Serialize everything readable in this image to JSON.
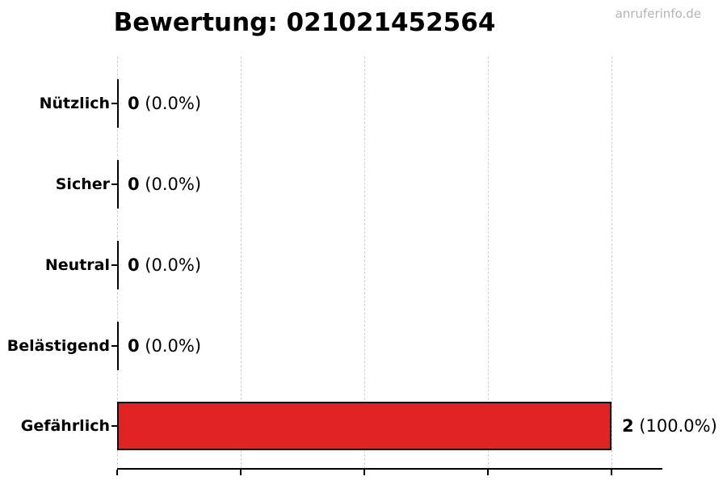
{
  "page": {
    "watermark": "anruferinfo.de"
  },
  "chart_data": {
    "type": "bar",
    "orientation": "horizontal",
    "title": "Bewertung: 021021452564",
    "categories": [
      "Nützlich",
      "Sicher",
      "Neutral",
      "Belästigend",
      "Gefährlich"
    ],
    "values": [
      0,
      0,
      0,
      0,
      2
    ],
    "value_labels": [
      "0 (0.0%)",
      "0 (0.0%)",
      "0 (0.0%)",
      "0 (0.0%)",
      "2 (100.0%)"
    ],
    "rows": [
      {
        "category": "Nützlich",
        "value": 0,
        "value_text": "0",
        "pct_text": " (0.0%)"
      },
      {
        "category": "Sicher",
        "value": 0,
        "value_text": "0",
        "pct_text": " (0.0%)"
      },
      {
        "category": "Neutral",
        "value": 0,
        "value_text": "0",
        "pct_text": " (0.0%)"
      },
      {
        "category": "Belästigend",
        "value": 0,
        "value_text": "0",
        "pct_text": " (0.0%)"
      },
      {
        "category": "Gefährlich",
        "value": 2,
        "value_text": "2",
        "pct_text": " (100.0%)"
      }
    ],
    "xlim": [
      0,
      2.2
    ],
    "xticks": [
      0,
      0.5,
      1.0,
      1.5,
      2.0
    ],
    "xtick_labels_visible": false,
    "grid": {
      "visible": true,
      "axis": "x",
      "style": "dashed",
      "color": "#cfcfcf"
    },
    "bar_color": "#e02424",
    "bar_edge_color": "#000000",
    "zero_bar_marker_color": "#000000",
    "legend": "none"
  }
}
